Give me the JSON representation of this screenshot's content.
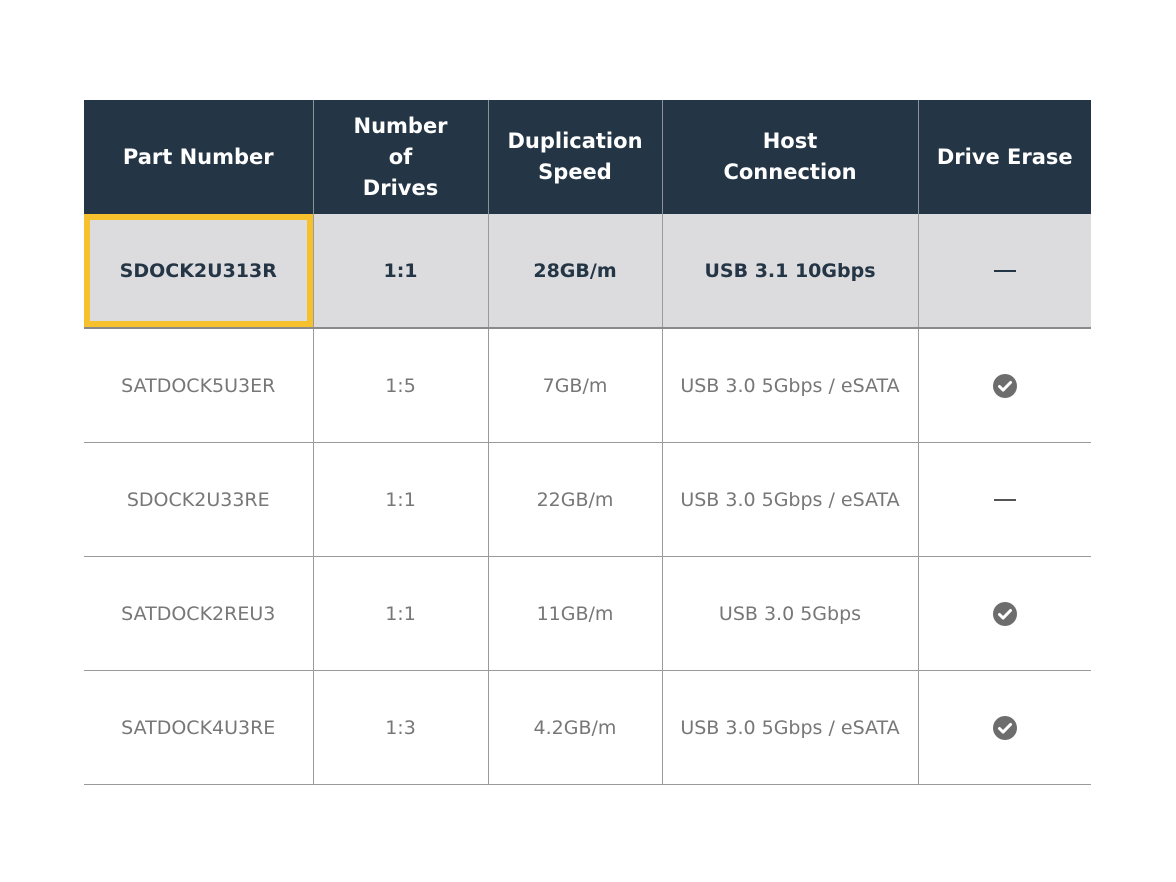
{
  "colors": {
    "header_bg": "#243545",
    "highlight_bg": "#dcdcde",
    "highlight_border": "#f6c12c",
    "check_icon": "#6d6d6d"
  },
  "columns": [
    "Part Number",
    "Number of Drives",
    "Duplication Speed",
    "Host Connection",
    "Drive Erase"
  ],
  "rows": [
    {
      "part": "SDOCK2U313R",
      "drives": "1:1",
      "speed": "28GB/m",
      "host": "USB 3.1 10Gbps",
      "erase": "dash-icon",
      "highlighted": true
    },
    {
      "part": "SATDOCK5U3ER",
      "drives": "1:5",
      "speed": "7GB/m",
      "host": "USB 3.0 5Gbps / eSATA",
      "erase": "check-circle-icon"
    },
    {
      "part": "SDOCK2U33RE",
      "drives": "1:1",
      "speed": "22GB/m",
      "host": "USB 3.0 5Gbps / eSATA",
      "erase": "dash-icon"
    },
    {
      "part": "SATDOCK2REU3",
      "drives": "1:1",
      "speed": "11GB/m",
      "host": "USB 3.0 5Gbps",
      "erase": "check-circle-icon"
    },
    {
      "part": "SATDOCK4U3RE",
      "drives": "1:3",
      "speed": "4.2GB/m",
      "host": "USB 3.0 5Gbps / eSATA",
      "erase": "check-circle-icon"
    }
  ]
}
